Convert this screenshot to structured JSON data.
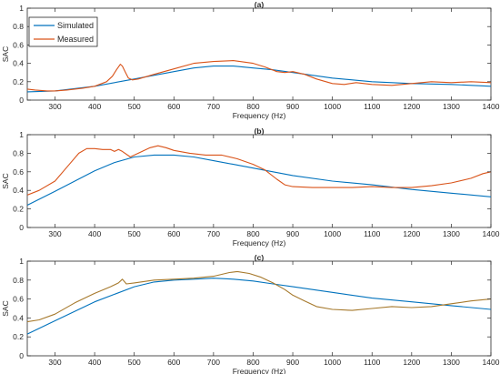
{
  "figure": {
    "legend_items": [
      "Simulated",
      "Measured"
    ],
    "series_colors": {
      "Simulated": "#0072BD",
      "Measured": "#D95319"
    }
  },
  "chart_data": [
    {
      "type": "line",
      "title": "(a)",
      "xlabel": "Frequency (Hz)",
      "ylabel": "SAC",
      "xlim": [
        230,
        1400
      ],
      "ylim": [
        0,
        1
      ],
      "xticks": [
        300,
        400,
        500,
        600,
        700,
        800,
        900,
        1000,
        1100,
        1200,
        1300,
        1400
      ],
      "yticks": [
        0,
        0.2,
        0.4,
        0.6,
        0.8,
        1
      ],
      "ytick_labels": [
        "0",
        "0.2",
        "0.4",
        "0.6",
        "0.8",
        "1"
      ],
      "grid": false,
      "legend": "top-left",
      "series": [
        {
          "name": "Simulated",
          "color": "#0072BD",
          "x": [
            230,
            300,
            400,
            500,
            600,
            650,
            700,
            750,
            800,
            850,
            900,
            1000,
            1100,
            1200,
            1300,
            1400
          ],
          "y": [
            0.09,
            0.1,
            0.15,
            0.23,
            0.31,
            0.35,
            0.37,
            0.37,
            0.35,
            0.33,
            0.3,
            0.24,
            0.2,
            0.18,
            0.17,
            0.15
          ]
        },
        {
          "name": "Measured",
          "color": "#D95319",
          "x": [
            230,
            250,
            280,
            300,
            330,
            370,
            400,
            430,
            445,
            455,
            465,
            470,
            478,
            485,
            495,
            510,
            550,
            600,
            650,
            700,
            750,
            800,
            830,
            860,
            880,
            900,
            930,
            960,
            1000,
            1030,
            1060,
            1100,
            1150,
            1200,
            1250,
            1300,
            1350,
            1400
          ],
          "y": [
            0.12,
            0.11,
            0.1,
            0.1,
            0.11,
            0.13,
            0.15,
            0.2,
            0.26,
            0.33,
            0.39,
            0.37,
            0.3,
            0.24,
            0.22,
            0.23,
            0.28,
            0.34,
            0.4,
            0.42,
            0.43,
            0.4,
            0.36,
            0.31,
            0.3,
            0.31,
            0.28,
            0.23,
            0.18,
            0.17,
            0.19,
            0.17,
            0.16,
            0.18,
            0.2,
            0.19,
            0.2,
            0.19
          ]
        }
      ]
    },
    {
      "type": "line",
      "title": "(b)",
      "xlabel": "Frequency (Hz)",
      "ylabel": "SAC",
      "xlim": [
        230,
        1400
      ],
      "ylim": [
        0,
        1
      ],
      "xticks": [
        300,
        400,
        500,
        600,
        700,
        800,
        900,
        1000,
        1100,
        1200,
        1300,
        1400
      ],
      "yticks": [
        0,
        0.2,
        0.4,
        0.6,
        0.8,
        1
      ],
      "ytick_labels": [
        "0",
        "0.2",
        "0.4",
        "0.6",
        "0.8",
        "1"
      ],
      "grid": false,
      "series": [
        {
          "name": "Simulated",
          "color": "#0072BD",
          "x": [
            230,
            300,
            350,
            400,
            450,
            500,
            550,
            600,
            650,
            700,
            750,
            800,
            850,
            900,
            1000,
            1100,
            1200,
            1300,
            1400
          ],
          "y": [
            0.24,
            0.39,
            0.5,
            0.61,
            0.7,
            0.76,
            0.78,
            0.78,
            0.76,
            0.72,
            0.68,
            0.64,
            0.6,
            0.56,
            0.5,
            0.46,
            0.41,
            0.37,
            0.33
          ]
        },
        {
          "name": "Measured",
          "color": "#D95319",
          "x": [
            230,
            260,
            300,
            330,
            360,
            380,
            400,
            420,
            440,
            450,
            460,
            470,
            490,
            510,
            540,
            560,
            580,
            600,
            640,
            680,
            720,
            760,
            800,
            830,
            860,
            880,
            900,
            950,
            1000,
            1050,
            1100,
            1150,
            1200,
            1250,
            1300,
            1350,
            1380,
            1400
          ],
          "y": [
            0.35,
            0.4,
            0.5,
            0.65,
            0.8,
            0.85,
            0.85,
            0.84,
            0.84,
            0.82,
            0.84,
            0.82,
            0.76,
            0.8,
            0.86,
            0.88,
            0.86,
            0.83,
            0.8,
            0.78,
            0.78,
            0.74,
            0.68,
            0.62,
            0.52,
            0.46,
            0.44,
            0.43,
            0.43,
            0.43,
            0.44,
            0.43,
            0.43,
            0.45,
            0.48,
            0.53,
            0.58,
            0.6
          ]
        }
      ]
    },
    {
      "type": "line",
      "title": "(c)",
      "xlabel": "Frequency (Hz)",
      "ylabel": "SAC",
      "xlim": [
        230,
        1400
      ],
      "ylim": [
        0,
        1
      ],
      "xticks": [
        300,
        400,
        500,
        600,
        700,
        800,
        900,
        1000,
        1100,
        1200,
        1300,
        1400
      ],
      "yticks": [
        0,
        0.2,
        0.4,
        0.6,
        0.8,
        1
      ],
      "ytick_labels": [
        "0",
        "0.2",
        "0.4",
        "0.6",
        "0.8",
        "1"
      ],
      "grid": false,
      "series": [
        {
          "name": "Simulated",
          "color": "#0072BD",
          "x": [
            230,
            300,
            400,
            450,
            500,
            550,
            600,
            650,
            700,
            750,
            800,
            850,
            900,
            1000,
            1100,
            1200,
            1300,
            1400
          ],
          "y": [
            0.23,
            0.37,
            0.57,
            0.65,
            0.73,
            0.78,
            0.8,
            0.81,
            0.82,
            0.81,
            0.79,
            0.76,
            0.73,
            0.67,
            0.61,
            0.57,
            0.53,
            0.49
          ]
        },
        {
          "name": "Measured",
          "color": "#A6792C",
          "x": [
            230,
            260,
            300,
            350,
            400,
            440,
            460,
            470,
            480,
            500,
            550,
            600,
            650,
            700,
            740,
            760,
            790,
            820,
            850,
            880,
            900,
            930,
            960,
            1000,
            1050,
            1100,
            1150,
            1200,
            1250,
            1300,
            1350,
            1400
          ],
          "y": [
            0.36,
            0.38,
            0.44,
            0.56,
            0.66,
            0.73,
            0.77,
            0.81,
            0.76,
            0.77,
            0.8,
            0.81,
            0.82,
            0.84,
            0.88,
            0.89,
            0.87,
            0.83,
            0.77,
            0.7,
            0.64,
            0.58,
            0.52,
            0.49,
            0.48,
            0.5,
            0.52,
            0.51,
            0.52,
            0.55,
            0.58,
            0.6
          ]
        }
      ]
    }
  ]
}
